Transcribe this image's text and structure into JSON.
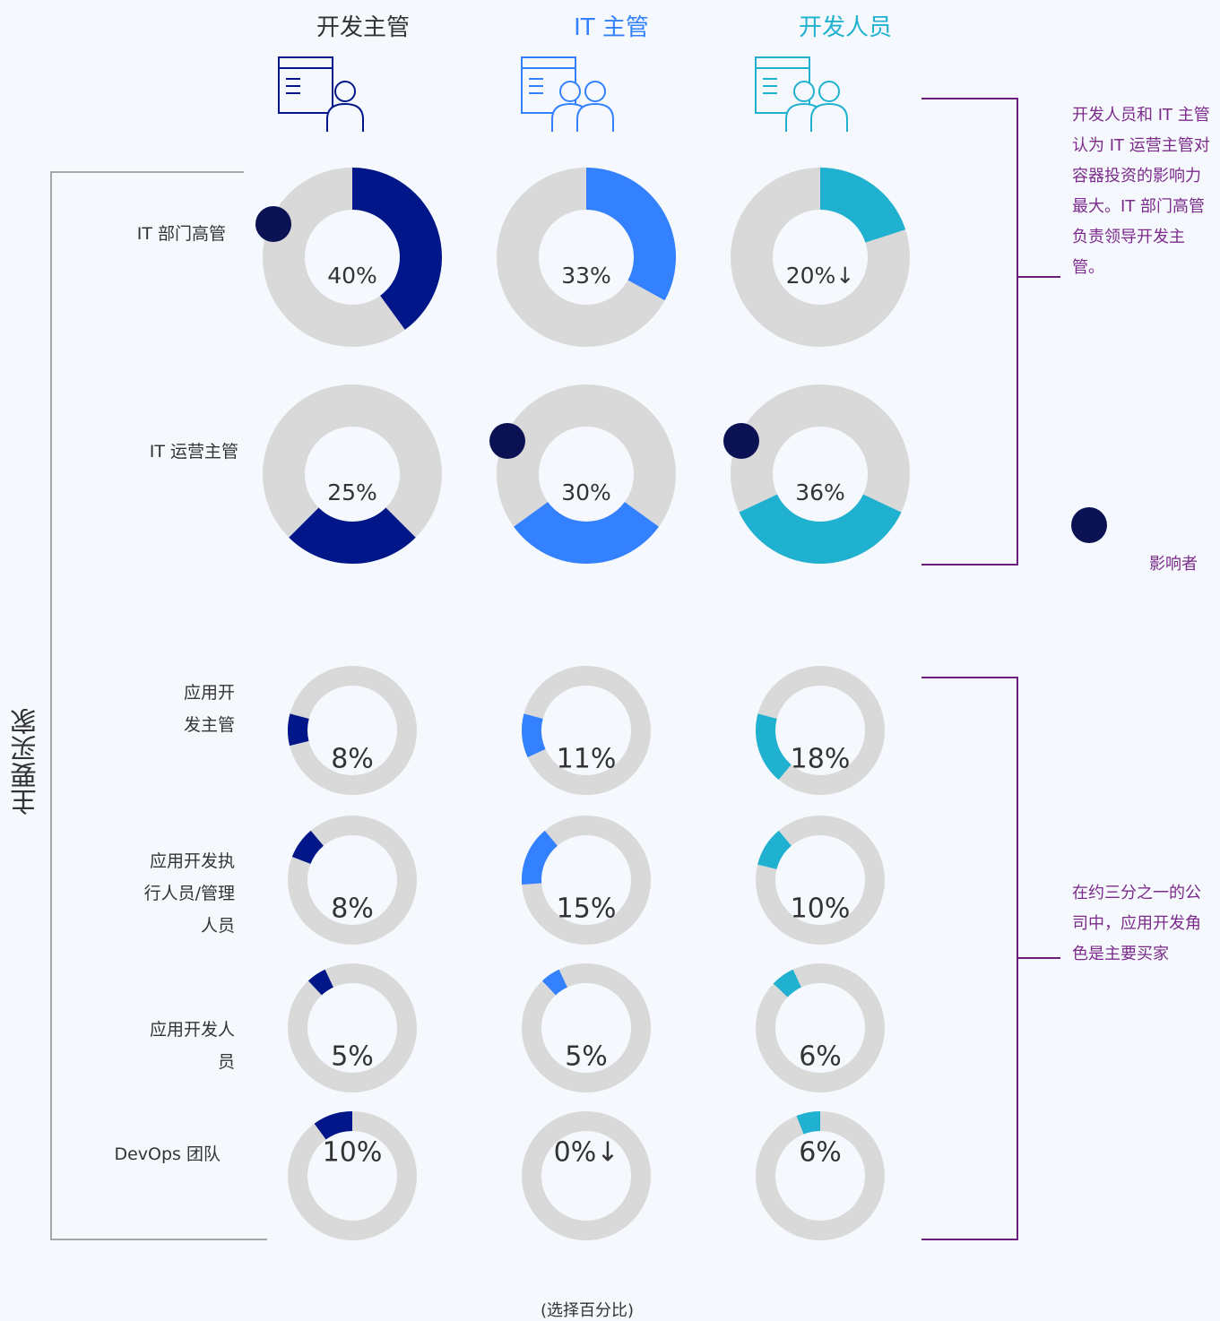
{
  "columns": [
    {
      "name": "开发主管",
      "color": "#001689",
      "title_color": "#333333"
    },
    {
      "name": "IT 主管",
      "color": "#3381ff",
      "title_color": "#3381ff"
    },
    {
      "name": "开发人员",
      "color": "#1fb1cf",
      "title_color": "#1fb1cf"
    }
  ],
  "influencer_rows": [
    {
      "label": "IT 部门高管",
      "values": [
        40,
        33,
        20
      ],
      "value_labels": [
        "40%",
        "33%",
        "20%↓"
      ],
      "influencer": [
        true,
        false,
        false
      ]
    },
    {
      "label": "IT 运营主管",
      "values": [
        25,
        30,
        36
      ],
      "value_labels": [
        "25%",
        "30%",
        "36%"
      ],
      "influencer": [
        false,
        true,
        true
      ]
    }
  ],
  "buyer_title": "主要买家",
  "buyer_rows": [
    {
      "label": "应用开发主管",
      "values": [
        8,
        11,
        18
      ],
      "value_labels": [
        "8%",
        "11%",
        "18%"
      ]
    },
    {
      "label": "应用开发执行人员/管理人员",
      "values": [
        8,
        15,
        10
      ],
      "value_labels": [
        "8%",
        "15%",
        "10%"
      ]
    },
    {
      "label": "应用开发人员",
      "values": [
        5,
        5,
        6
      ],
      "value_labels": [
        "5%",
        "5%",
        "6%"
      ]
    },
    {
      "label": "DevOps 团队",
      "values": [
        10,
        0,
        6
      ],
      "value_labels": [
        "10%",
        "0%↓",
        "6%"
      ]
    }
  ],
  "influencer_note": "开发人员和 IT 主管认为 IT 运营主管对容器投资的影响力最大。IT 部门高管负责领导开发主管。",
  "buyer_note": "在约三分之一的公司中，应用开发角色是主要买家",
  "legend": "影响者",
  "footnote": "(选择百分比)"
}
